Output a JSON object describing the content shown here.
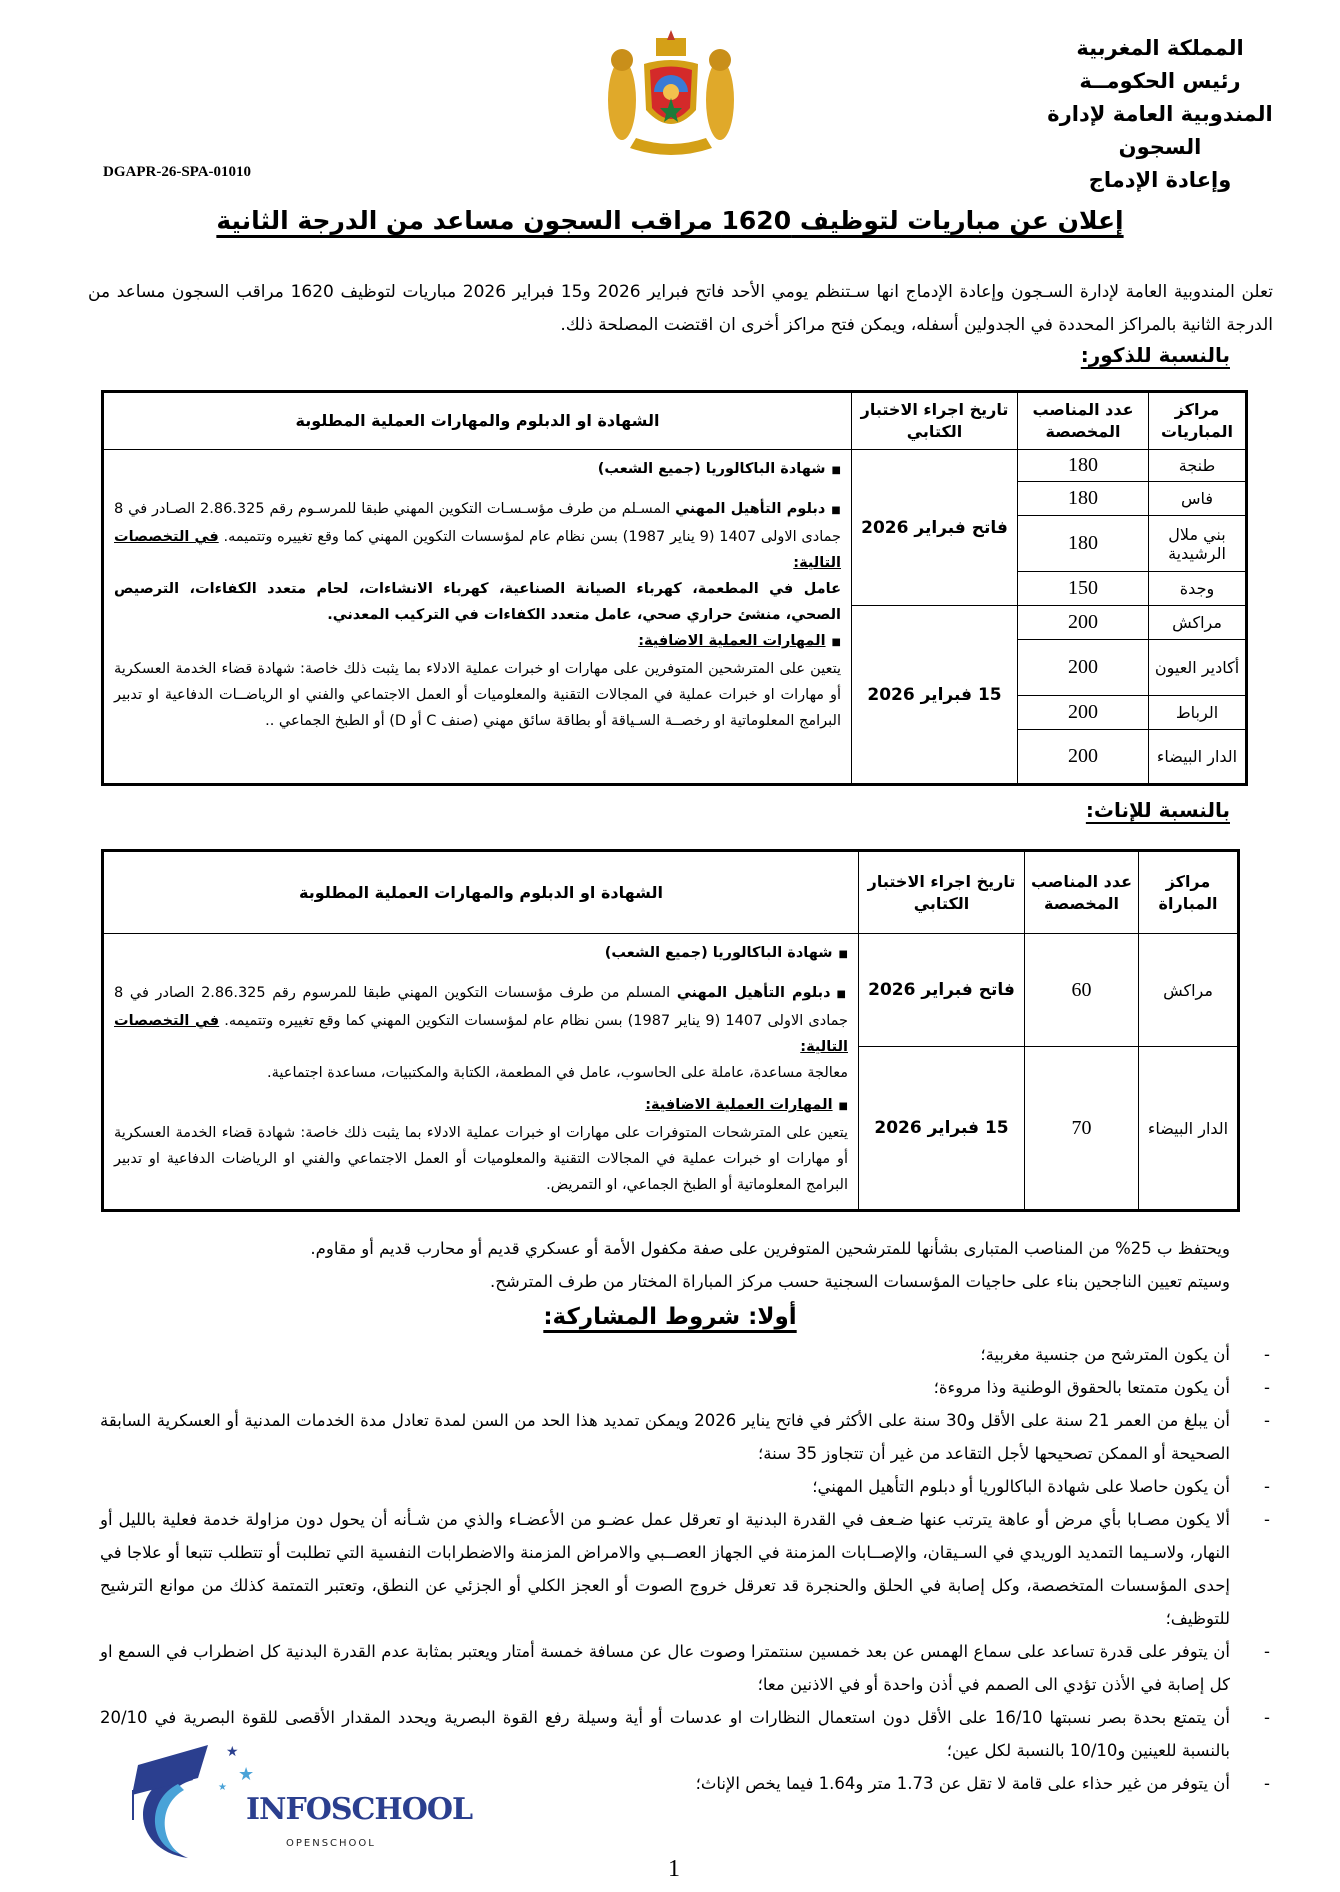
{
  "header": {
    "lines": [
      "المملكة المغربية",
      "رئيس الحكومــة",
      "المندوبية العامة لإدارة السجون",
      "وإعادة الإدماج"
    ],
    "reference": "DGAPR-26-SPA-01010",
    "emblem": "moroccan-coat-of-arms"
  },
  "title": "إعلان عن مباريات لتوظيف 1620 مراقب السجون مساعد من الدرجة الثانية",
  "intro": "تعلن المندوبية العامة لإدارة السـجون وإعادة الإدماج انها سـتنظم يومي الأحد فاتح فبراير 2026 و15 فبراير 2026 مباريات لتوظيف 1620 مراقب السجون مساعد من الدرجة الثانية بالمراكز المحددة في الجدولين أسفله، ويمكن فتح مراكز أخرى ان اقتضت المصلحة ذلك.",
  "males": {
    "heading": "بالنسبة للذكور:",
    "columns": [
      "مراكز المباريات",
      "عدد المناصب المخصصة",
      "تاريخ اجراء الاختبار الكتابي",
      "الشهادة او الدبلوم والمهارات العملية المطلوبة"
    ],
    "rows": [
      {
        "center": "طنجة",
        "count": "180"
      },
      {
        "center": "فاس",
        "count": "180"
      },
      {
        "center": "بني ملال الرشيدية",
        "count": "180"
      },
      {
        "center": "وجدة",
        "count": "150"
      },
      {
        "center": "مراكش",
        "count": "200"
      },
      {
        "center": "أكادير العيون",
        "count": "200"
      },
      {
        "center": "الرباط",
        "count": "200"
      },
      {
        "center": "الدار البيضاء",
        "count": "200"
      }
    ],
    "dates": [
      "فاتح فبراير 2026",
      "15 فبراير 2026"
    ],
    "desc": {
      "bac": "شهادة الباكالوريا (جميع الشعب)",
      "diploma_bold": "دبلوم التأهيل المهني",
      "diploma_text": " المسـلم من طرف مؤسـسـات التكوين المهني طبقا للمرسـوم رقم 2.86.325 الصـادر في 8 جمادى الاولى 1407 (9 يناير 1987) بسن نظام عام لمؤسسات التكوين المهني كما وقع تغييره وتتميمه. ",
      "specialties_label": "في التخصصات التالية:",
      "specialties": "عامل في المطعمة، كهرباء الصيانة الصناعية، كهرباء الانشاءات، لحام متعدد الكفاءات، الترصيص الصحي، منشئ حراري صحي، عامل متعدد الكفاءات في التركيب المعدني.",
      "skills_label": "المهارات العملية الاضافية:",
      "skills": "يتعين على المترشحين المتوفرين على مهارات او خبرات عملية الادلاء بما يثبت ذلك خاصة: شهادة قضاء الخدمة العسكرية أو مهارات او خبرات عملية في المجالات التقنية والمعلوميات أو العمل الاجتماعي والفني او الرياضــات الدفاعية او تدبير البرامج المعلوماتية او رخصــة السـياقة أو بطاقة سائق مهني (صنف C أو D) أو الطبخ الجماعي .."
    }
  },
  "females": {
    "heading": "بالنسبة للإناث:",
    "columns": [
      "مراكز المباراة",
      "عدد المناصب المخصصة",
      "تاريخ اجراء الاختبار الكتابي",
      "الشهادة او الدبلوم والمهارات العملية المطلوبة"
    ],
    "rows": [
      {
        "center": "مراكش",
        "count": "60",
        "date": "فاتح فبراير 2026"
      },
      {
        "center": "الدار البيضاء",
        "count": "70",
        "date": "15 فبراير 2026"
      }
    ],
    "desc": {
      "bac": "شهادة الباكالوريا (جميع الشعب)",
      "diploma_bold": "دبلوم التأهيل المهني",
      "diploma_text": " المسلم من طرف مؤسسات التكوين المهني طبقا للمرسوم رقم 2.86.325 الصادر في 8 جمادى الاولى 1407 (9 يناير 1987) بسن نظام عام لمؤسسات التكوين المهني كما وقع تغييره وتتميمه. ",
      "specialties_label": "في التخصصات التالية:",
      "specialties": "معالجة مساعدة، عاملة على الحاسوب، عامل في المطعمة، الكتابة والمكتبيات، مساعدة اجتماعية.",
      "skills_label": "المهارات العملية الاضافية:",
      "skills": "يتعين على المترشحات المتوفرات على مهارات او خبرات عملية الادلاء بما يثبت ذلك خاصة: شهادة قضاء الخدمة العسكرية أو مهارات او خبرات عملية في المجالات التقنية والمعلوميات أو العمل الاجتماعي والفني او الرياضات الدفاعية او تدبير البرامج المعلوماتية أو الطبخ الجماعي، او التمريض."
    }
  },
  "notes": [
    "ويحتفظ ب 25% من المناصب المتبارى بشأنها للمترشحين المتوفرين على صفة مكفول الأمة أو عسكري قديم أو محارب قديم أو مقاوم.",
    "وسيتم تعيين الناجحين بناء على حاجيات المؤسسات السجنية حسب مركز المباراة المختار من طرف المترشح."
  ],
  "conditions": {
    "heading": "أولا: شروط المشاركة:",
    "items": [
      "أن يكون المترشح من جنسية مغربية؛",
      "أن يكون متمتعا بالحقوق الوطنية وذا مروءة؛",
      "أن يبلغ من العمر 21 سنة على الأقل و30 سنة على الأكثر في فاتح يناير 2026 ويمكن تمديد هذا الحد من السن لمدة تعادل مدة الخدمات المدنية أو العسكرية السابقة الصحيحة أو الممكن تصحيحها لأجل التقاعد من غير أن تتجاوز 35 سنة؛",
      "أن يكون حاصلا على شهادة الباكالوريا أو دبلوم التأهيل المهني؛",
      "ألا يكون مصـابا بأي مرض أو عاهة يترتب عنها ضـعف في القدرة البدنية او تعرقل عمل عضـو من الأعضـاء والذي من شـأنه أن يحول دون مزاولة خدمة فعلية بالليل أو النهار، ولاسـيما التمديد الوريدي في السـيقان، والإصــابات المزمنة في الجهاز العصــبي والامراض المزمنة والاضطرابات النفسية التي تطلبت أو تتطلب تتبعا أو علاجا في إحدى المؤسسات المتخصصة، وكل إصابة في الحلق والحنجرة قد تعرقل خروج الصوت أو العجز الكلي أو الجزئي عن النطق، وتعتبر التمتمة كذلك من موانع الترشيح للتوظيف؛",
      "أن يتوفر على قدرة تساعد على سماع الهمس عن بعد خمسين سنتمترا وصوت عال عن مسافة خمسة أمتار ويعتبر بمثابة عدم القدرة البدنية كل اضطراب في السمع او كل إصابة في الأذن تؤدي الى الصمم في أذن واحدة أو في الاذنين معا؛",
      "أن يتمتع بحدة بصر نسبتها 16/10 على الأقل دون استعمال النظارات او عدسات أو أية وسيلة رفع القوة البصرية ويحدد المقدار الأقصى للقوة البصرية في 20/10 بالنسبة للعينين و10/10 بالنسبة لكل عين؛",
      "أن يتوفر من غير حذاء على قامة لا تقل عن 1.73 متر و1.64 فيما يخص الإناث؛"
    ]
  },
  "watermark": {
    "name": "INFOSCHOOL",
    "tagline": "OPENSCHOOL",
    "colors": [
      "#2b3f8f",
      "#4aa3d8"
    ]
  },
  "page_number": "1"
}
